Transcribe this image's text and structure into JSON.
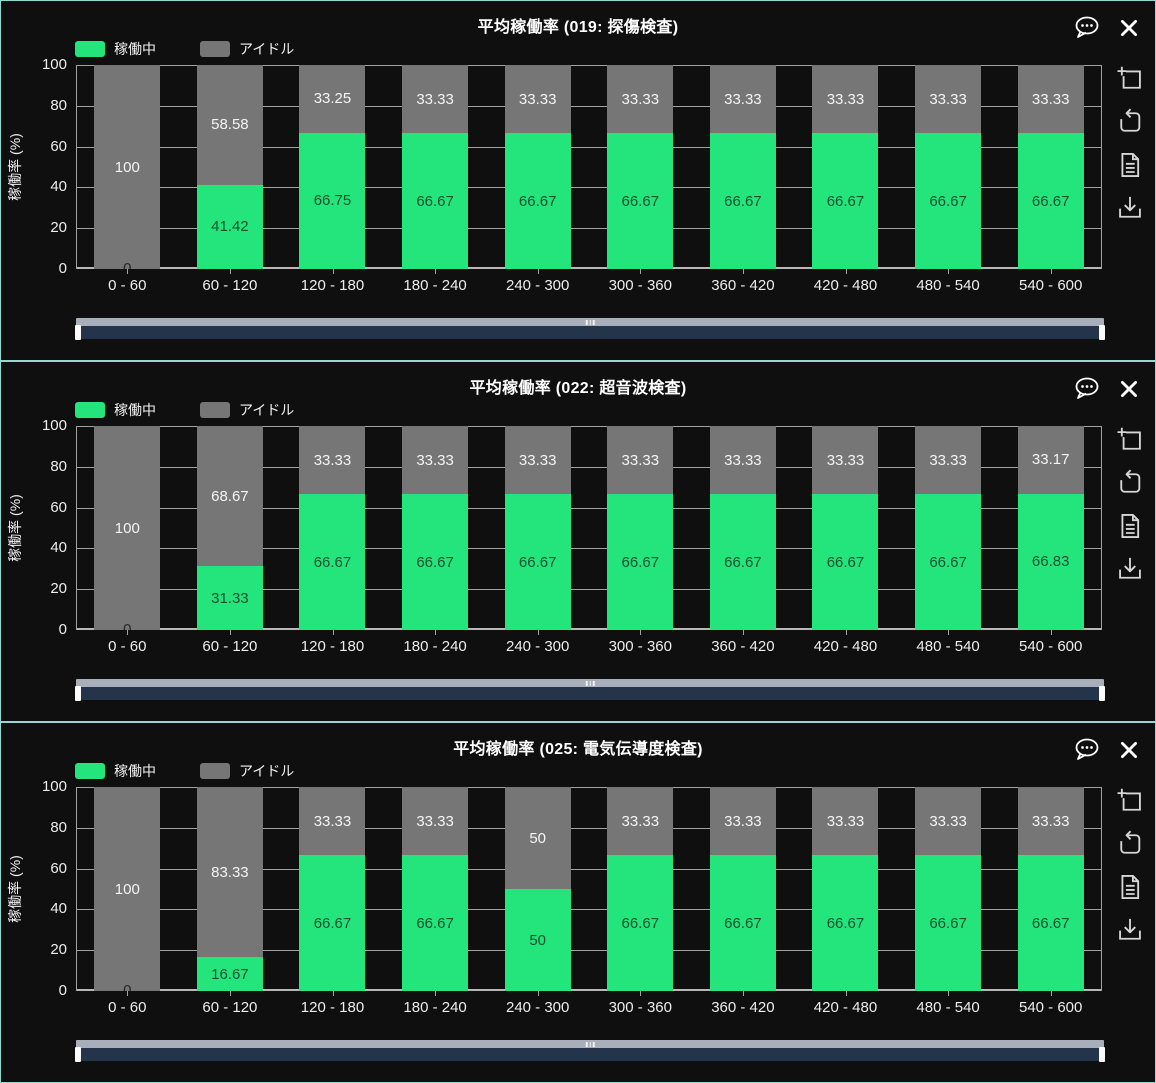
{
  "legend": {
    "operating": "稼働中",
    "idle": "アイドル"
  },
  "axis": {
    "ylabel": "稼働率 (%)",
    "y_ticks": [
      "100",
      "80",
      "60",
      "40",
      "20",
      "0"
    ]
  },
  "colors": {
    "operating": "#23e57c",
    "idle": "#767676",
    "panel_border": "#93d8d2",
    "grid": "#a2a2a2",
    "scrollbar_track": "#a9afba",
    "scrollbar_bar": "#24344a",
    "title_text": "#ffffff"
  },
  "icons": {
    "comment": "comment-icon (speech bubble with three dots)",
    "close": "close-icon (x)",
    "box_zoom": "box-zoom-icon (square with plus)",
    "reset_zoom": "reset-zoom-icon (square with return arrow)",
    "data_sheet": "document-icon (page with lines)",
    "download": "download-icon (arrow into tray)",
    "scroll_grip": "grip-icon (three small bars)"
  },
  "chart_data": [
    {
      "type": "bar",
      "stacked": true,
      "title": "平均稼働率 (019: 探傷検査)",
      "xlabel": "",
      "ylabel": "稼働率 (%)",
      "ylim": [
        0,
        100
      ],
      "grid": true,
      "legend_position": "top-left",
      "categories": [
        "0 - 60",
        "60 - 120",
        "120 - 180",
        "180 - 240",
        "240 - 300",
        "300 - 360",
        "360 - 420",
        "420 - 480",
        "480 - 540",
        "540 - 600"
      ],
      "series": [
        {
          "name": "稼働中",
          "color": "#23e57c",
          "values": [
            0,
            41.42,
            66.75,
            66.67,
            66.67,
            66.67,
            66.67,
            66.67,
            66.67,
            66.67
          ],
          "labels": [
            "0",
            "41.42",
            "66.75",
            "66.67",
            "66.67",
            "66.67",
            "66.67",
            "66.67",
            "66.67",
            "66.67"
          ]
        },
        {
          "name": "アイドル",
          "color": "#767676",
          "values": [
            100,
            58.58,
            33.25,
            33.33,
            33.33,
            33.33,
            33.33,
            33.33,
            33.33,
            33.33
          ],
          "labels": [
            "100",
            "58.58",
            "33.25",
            "33.33",
            "33.33",
            "33.33",
            "33.33",
            "33.33",
            "33.33",
            "33.33"
          ]
        }
      ]
    },
    {
      "type": "bar",
      "stacked": true,
      "title": "平均稼働率 (022: 超音波検査)",
      "xlabel": "",
      "ylabel": "稼働率 (%)",
      "ylim": [
        0,
        100
      ],
      "grid": true,
      "legend_position": "top-left",
      "categories": [
        "0 - 60",
        "60 - 120",
        "120 - 180",
        "180 - 240",
        "240 - 300",
        "300 - 360",
        "360 - 420",
        "420 - 480",
        "480 - 540",
        "540 - 600"
      ],
      "series": [
        {
          "name": "稼働中",
          "color": "#23e57c",
          "values": [
            0,
            31.33,
            66.67,
            66.67,
            66.67,
            66.67,
            66.67,
            66.67,
            66.67,
            66.83
          ],
          "labels": [
            "0",
            "31.33",
            "66.67",
            "66.67",
            "66.67",
            "66.67",
            "66.67",
            "66.67",
            "66.67",
            "66.83"
          ]
        },
        {
          "name": "アイドル",
          "color": "#767676",
          "values": [
            100,
            68.67,
            33.33,
            33.33,
            33.33,
            33.33,
            33.33,
            33.33,
            33.33,
            33.17
          ],
          "labels": [
            "100",
            "68.67",
            "33.33",
            "33.33",
            "33.33",
            "33.33",
            "33.33",
            "33.33",
            "33.33",
            "33.17"
          ]
        }
      ]
    },
    {
      "type": "bar",
      "stacked": true,
      "title": "平均稼働率 (025: 電気伝導度検査)",
      "xlabel": "",
      "ylabel": "稼働率 (%)",
      "ylim": [
        0,
        100
      ],
      "grid": true,
      "legend_position": "top-left",
      "categories": [
        "0 - 60",
        "60 - 120",
        "120 - 180",
        "180 - 240",
        "240 - 300",
        "300 - 360",
        "360 - 420",
        "420 - 480",
        "480 - 540",
        "540 - 600"
      ],
      "series": [
        {
          "name": "稼働中",
          "color": "#23e57c",
          "values": [
            0,
            16.67,
            66.67,
            66.67,
            50,
            66.67,
            66.67,
            66.67,
            66.67,
            66.67
          ],
          "labels": [
            "0",
            "16.67",
            "66.67",
            "66.67",
            "50",
            "66.67",
            "66.67",
            "66.67",
            "66.67",
            "66.67"
          ]
        },
        {
          "name": "アイドル",
          "color": "#767676",
          "values": [
            100,
            83.33,
            33.33,
            33.33,
            50,
            33.33,
            33.33,
            33.33,
            33.33,
            33.33
          ],
          "labels": [
            "100",
            "83.33",
            "33.33",
            "33.33",
            "50",
            "33.33",
            "33.33",
            "33.33",
            "33.33",
            "33.33"
          ]
        }
      ]
    }
  ]
}
